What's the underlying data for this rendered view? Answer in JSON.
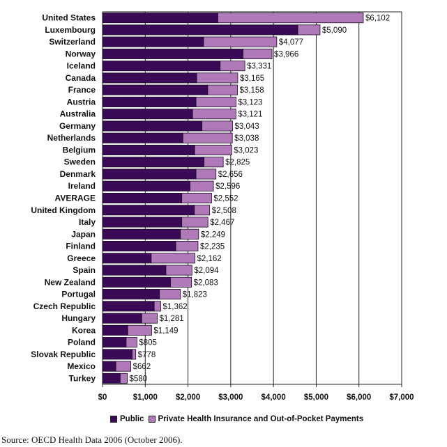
{
  "chart_data": {
    "type": "bar",
    "orientation": "horizontal",
    "stacked": true,
    "categories": [
      "United States",
      "Luxembourg",
      "Switzerland",
      "Norway",
      "Iceland",
      "Canada",
      "France",
      "Austria",
      "Australia",
      "Germany",
      "Netherlands",
      "Belgium",
      "Sweden",
      "Denmark",
      "Ireland",
      "AVERAGE",
      "United Kingdom",
      "Italy",
      "Japan",
      "Finland",
      "Greece",
      "Spain",
      "New Zealand",
      "Portugal",
      "Czech Republic",
      "Hungary",
      "Korea",
      "Poland",
      "Slovak Republic",
      "Mexico",
      "Turkey"
    ],
    "totals": [
      6102,
      5090,
      4077,
      3966,
      3331,
      3165,
      3158,
      3123,
      3121,
      3043,
      3038,
      3023,
      2825,
      2656,
      2596,
      2552,
      2508,
      2467,
      2249,
      2235,
      2162,
      2094,
      2083,
      1823,
      1362,
      1281,
      1149,
      805,
      778,
      662,
      580
    ],
    "total_labels": [
      "$6,102",
      "$5,090",
      "$4,077",
      "$3,966",
      "$3,331",
      "$3,165",
      "$3,158",
      "$3,123",
      "$3,121",
      "$3,043",
      "$3,038",
      "$3,023",
      "$2,825",
      "$2,656",
      "$2,596",
      "$2,552",
      "$2,508",
      "$2,467",
      "$2,249",
      "$2,235",
      "$2,162",
      "$2,094",
      "$2,083",
      "$1,823",
      "$1,362",
      "$1,281",
      "$1,149",
      "$805",
      "$778",
      "$662",
      "$580"
    ],
    "series": [
      {
        "name": "Public",
        "color": "#3b0a57",
        "values": [
          2700,
          4570,
          2366,
          3290,
          2753,
          2204,
          2462,
          2188,
          2108,
          2328,
          1882,
          2156,
          2376,
          2188,
          2048,
          1855,
          2150,
          1855,
          1823,
          1715,
          1140,
          1484,
          1591,
          1333,
          1210,
          919,
          591,
          554,
          694,
          312,
          414
        ]
      },
      {
        "name": "Private Health Insurance and Out-of-Pocket Payments",
        "color": "#b07ab8"
      }
    ],
    "xlim": [
      0,
      7000
    ],
    "x_ticks": [
      "$0",
      "$1,000",
      "$2,000",
      "$3,000",
      "$4,000",
      "$5,000",
      "$6,000",
      "$7,000"
    ],
    "grid": true,
    "legend_position": "bottom"
  },
  "legend": {
    "public": "Public",
    "private": "Private Health Insurance and Out-of-Pocket Payments"
  },
  "source": "Source: OECD Health Data 2006 (October 2006)."
}
